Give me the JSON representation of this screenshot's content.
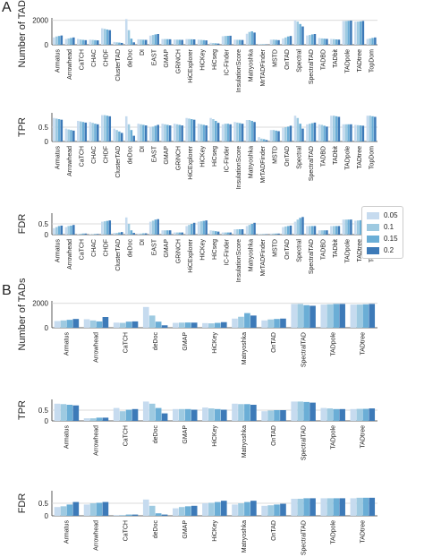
{
  "panel_labels": {
    "a": "A",
    "b": "B"
  },
  "legend": {
    "placement": "right-middle",
    "entries": [
      {
        "label": "0.05",
        "color": "#c6dbef"
      },
      {
        "label": "0.1",
        "color": "#9ecae1"
      },
      {
        "label": "0.15",
        "color": "#6baed6"
      },
      {
        "label": "0.2",
        "color": "#3d7ab8"
      }
    ]
  },
  "chart_data": [
    {
      "type": "bar",
      "panel": "A",
      "ylabel": "Number of TADs",
      "yticks": [
        0,
        2000
      ],
      "ylim": [
        0,
        2200
      ],
      "grid": true,
      "categories": [
        "Armatus",
        "Arrowhead",
        "CaTCH",
        "CHAC",
        "CHDF",
        "ClusterTAD",
        "deDoc",
        "DI",
        "EAST",
        "GMAP",
        "GRiNCH",
        "HiCExplorer",
        "HiCKey",
        "HiCseg",
        "IC-Finder",
        "InsulationScore",
        "Matryoshka",
        "MrTADFinder",
        "MSTD",
        "OnTAD",
        "Spectral",
        "SpectralTAD",
        "TADBD",
        "TADbit",
        "TADpole",
        "TADtree",
        "TopDom"
      ],
      "series": [
        {
          "name": "0.05",
          "values": [
            600,
            480,
            480,
            420,
            1350,
            230,
            2100,
            450,
            750,
            470,
            430,
            470,
            420,
            160,
            700,
            420,
            900,
            60,
            420,
            520,
            2000,
            760,
            550,
            480,
            1950,
            1900,
            480
          ]
        },
        {
          "name": "0.1",
          "values": [
            680,
            520,
            430,
            400,
            1300,
            200,
            1200,
            430,
            800,
            470,
            420,
            460,
            400,
            140,
            720,
            410,
            1050,
            50,
            420,
            600,
            1900,
            800,
            520,
            460,
            1950,
            1900,
            520
          ]
        },
        {
          "name": "0.15",
          "values": [
            720,
            560,
            400,
            380,
            1250,
            180,
            500,
            410,
            850,
            460,
            410,
            450,
            380,
            120,
            730,
            400,
            1100,
            40,
            400,
            680,
            1700,
            850,
            500,
            440,
            1960,
            1920,
            560
          ]
        },
        {
          "name": "0.2",
          "values": [
            760,
            600,
            380,
            360,
            1200,
            150,
            200,
            400,
            880,
            450,
            400,
            440,
            360,
            100,
            740,
            390,
            1000,
            30,
            380,
            720,
            1500,
            880,
            480,
            420,
            1980,
            1950,
            600
          ]
        }
      ]
    },
    {
      "type": "bar",
      "panel": "A",
      "ylabel": "TPR",
      "yticks": [
        0.0,
        0.5
      ],
      "ylim": [
        0,
        1.0
      ],
      "grid": true,
      "categories": [
        "Armatus",
        "Arrowhead",
        "CaTCH",
        "CHAC",
        "CHDF",
        "ClusterTAD",
        "deDoc",
        "DI",
        "EAST",
        "GMAP",
        "GRiNCH",
        "HiCExplorer",
        "HiCKey",
        "HiCseg",
        "IC-Finder",
        "InsulationScore",
        "Matryoshka",
        "MrTADFinder",
        "MSTD",
        "OnTAD",
        "Spectral",
        "SpectralTAD",
        "TADBD",
        "TADbit",
        "TADpole",
        "TADtree",
        "TopDom"
      ],
      "series": [
        {
          "name": "0.05",
          "values": [
            0.82,
            0.45,
            0.72,
            0.68,
            0.92,
            0.45,
            0.88,
            0.62,
            0.5,
            0.62,
            0.62,
            0.82,
            0.62,
            0.82,
            0.6,
            0.68,
            0.75,
            0.15,
            0.4,
            0.48,
            0.9,
            0.6,
            0.6,
            0.9,
            0.6,
            0.58,
            0.9
          ]
        },
        {
          "name": "0.1",
          "values": [
            0.8,
            0.42,
            0.7,
            0.65,
            0.92,
            0.4,
            0.6,
            0.6,
            0.52,
            0.6,
            0.6,
            0.8,
            0.6,
            0.78,
            0.62,
            0.66,
            0.75,
            0.1,
            0.4,
            0.5,
            0.82,
            0.62,
            0.58,
            0.9,
            0.6,
            0.57,
            0.9
          ]
        },
        {
          "name": "0.15",
          "values": [
            0.78,
            0.4,
            0.68,
            0.62,
            0.9,
            0.35,
            0.4,
            0.58,
            0.55,
            0.58,
            0.58,
            0.78,
            0.58,
            0.72,
            0.62,
            0.64,
            0.72,
            0.08,
            0.38,
            0.52,
            0.62,
            0.64,
            0.55,
            0.88,
            0.6,
            0.56,
            0.88
          ]
        },
        {
          "name": "0.2",
          "values": [
            0.76,
            0.38,
            0.66,
            0.6,
            0.88,
            0.3,
            0.2,
            0.56,
            0.58,
            0.56,
            0.56,
            0.76,
            0.56,
            0.65,
            0.6,
            0.62,
            0.68,
            0.05,
            0.36,
            0.55,
            0.45,
            0.66,
            0.52,
            0.86,
            0.6,
            0.55,
            0.86
          ]
        }
      ]
    },
    {
      "type": "bar",
      "panel": "A",
      "ylabel": "FDR",
      "yticks": [
        0.0,
        0.5
      ],
      "ylim": [
        0,
        1.0
      ],
      "grid": true,
      "categories": [
        "Armatus",
        "Arrowhead",
        "CaTCH",
        "CHAC",
        "CHDF",
        "ClusterTAD",
        "deDoc",
        "DI",
        "EAST",
        "GMAP",
        "GRiNCH",
        "HiCExplorer",
        "HiCKey",
        "HiCseg",
        "IC-Finder",
        "InsulationScore",
        "Matryoshka",
        "MrTADFinder",
        "MSTD",
        "OnTAD",
        "Spectral",
        "SpectralTAD",
        "TADBD",
        "TADbit",
        "TADpole",
        "TADtree",
        "TopDom"
      ],
      "series": [
        {
          "name": "0.05",
          "values": [
            0.3,
            0.35,
            0.03,
            0.02,
            0.6,
            0.08,
            0.8,
            0.05,
            0.6,
            0.2,
            0.1,
            0.4,
            0.6,
            0.2,
            0.1,
            0.25,
            0.4,
            0.02,
            0.05,
            0.35,
            0.6,
            0.4,
            0.2,
            0.4,
            0.7,
            0.65,
            0.08
          ]
        },
        {
          "name": "0.1",
          "values": [
            0.35,
            0.4,
            0.04,
            0.02,
            0.62,
            0.08,
            0.5,
            0.05,
            0.65,
            0.2,
            0.1,
            0.45,
            0.62,
            0.18,
            0.1,
            0.25,
            0.45,
            0.02,
            0.05,
            0.38,
            0.7,
            0.4,
            0.2,
            0.4,
            0.7,
            0.66,
            0.1
          ]
        },
        {
          "name": "0.15",
          "values": [
            0.4,
            0.42,
            0.05,
            0.03,
            0.64,
            0.1,
            0.2,
            0.06,
            0.7,
            0.2,
            0.1,
            0.5,
            0.64,
            0.16,
            0.1,
            0.25,
            0.5,
            0.02,
            0.05,
            0.4,
            0.78,
            0.4,
            0.2,
            0.4,
            0.7,
            0.67,
            0.15
          ]
        },
        {
          "name": "0.2",
          "values": [
            0.42,
            0.45,
            0.05,
            0.03,
            0.66,
            0.12,
            0.08,
            0.06,
            0.72,
            0.2,
            0.1,
            0.55,
            0.66,
            0.14,
            0.1,
            0.25,
            0.55,
            0.02,
            0.05,
            0.42,
            0.82,
            0.4,
            0.2,
            0.4,
            0.7,
            0.68,
            0.22
          ]
        }
      ]
    },
    {
      "type": "bar",
      "panel": "B",
      "ylabel": "Number of TADs",
      "yticks": [
        0,
        2000
      ],
      "ylim": [
        0,
        2200
      ],
      "grid": true,
      "categories": [
        "Armatus",
        "Arrowhead",
        "CaTCH",
        "deDoc",
        "GMAP",
        "HiCKey",
        "Matryoshka",
        "OnTAD",
        "SpectralTAD",
        "TADpole",
        "TADtree"
      ],
      "series": [
        {
          "name": "0.05",
          "values": [
            550,
            700,
            420,
            1700,
            400,
            380,
            750,
            600,
            1950,
            1900,
            1900
          ]
        },
        {
          "name": "0.1",
          "values": [
            600,
            600,
            400,
            1000,
            420,
            360,
            900,
            680,
            1950,
            1920,
            1900
          ]
        },
        {
          "name": "0.15",
          "values": [
            650,
            520,
            500,
            500,
            430,
            400,
            1200,
            720,
            1850,
            1950,
            1920
          ]
        },
        {
          "name": "0.2",
          "values": [
            720,
            880,
            520,
            200,
            420,
            460,
            1000,
            750,
            1800,
            1950,
            1950
          ]
        }
      ]
    },
    {
      "type": "bar",
      "panel": "B",
      "ylabel": "TPR",
      "yticks": [
        0.0,
        0.5
      ],
      "ylim": [
        0,
        1.0
      ],
      "grid": true,
      "categories": [
        "Armatus",
        "Arrowhead",
        "CaTCH",
        "deDoc",
        "GMAP",
        "HiCKey",
        "Matryoshka",
        "OnTAD",
        "SpectralTAD",
        "TADpole",
        "TADtree"
      ],
      "series": [
        {
          "name": "0.05",
          "values": [
            0.8,
            0.12,
            0.6,
            0.9,
            0.55,
            0.62,
            0.8,
            0.45,
            0.9,
            0.6,
            0.55
          ]
        },
        {
          "name": "0.1",
          "values": [
            0.78,
            0.12,
            0.45,
            0.8,
            0.55,
            0.58,
            0.78,
            0.48,
            0.9,
            0.58,
            0.56
          ]
        },
        {
          "name": "0.15",
          "values": [
            0.75,
            0.15,
            0.52,
            0.6,
            0.55,
            0.55,
            0.78,
            0.5,
            0.88,
            0.55,
            0.56
          ]
        },
        {
          "name": "0.2",
          "values": [
            0.72,
            0.15,
            0.55,
            0.35,
            0.52,
            0.52,
            0.75,
            0.5,
            0.85,
            0.55,
            0.58
          ]
        }
      ]
    },
    {
      "type": "bar",
      "panel": "B",
      "ylabel": "FDR",
      "yticks": [
        0.0,
        0.5
      ],
      "ylim": [
        0,
        1.0
      ],
      "grid": true,
      "categories": [
        "Armatus",
        "Arrowhead",
        "CaTCH",
        "deDoc",
        "GMAP",
        "HiCKey",
        "Matryoshka",
        "OnTAD",
        "SpectralTAD",
        "TADpole",
        "TADtree"
      ],
      "series": [
        {
          "name": "0.05",
          "values": [
            0.35,
            0.45,
            0.03,
            0.65,
            0.3,
            0.5,
            0.45,
            0.4,
            0.68,
            0.7,
            0.7
          ]
        },
        {
          "name": "0.1",
          "values": [
            0.38,
            0.5,
            0.03,
            0.4,
            0.35,
            0.52,
            0.5,
            0.42,
            0.68,
            0.7,
            0.72
          ]
        },
        {
          "name": "0.15",
          "values": [
            0.45,
            0.52,
            0.05,
            0.1,
            0.38,
            0.55,
            0.55,
            0.45,
            0.7,
            0.7,
            0.72
          ]
        },
        {
          "name": "0.2",
          "values": [
            0.55,
            0.55,
            0.05,
            0.05,
            0.4,
            0.6,
            0.6,
            0.48,
            0.7,
            0.7,
            0.72
          ]
        }
      ]
    }
  ]
}
